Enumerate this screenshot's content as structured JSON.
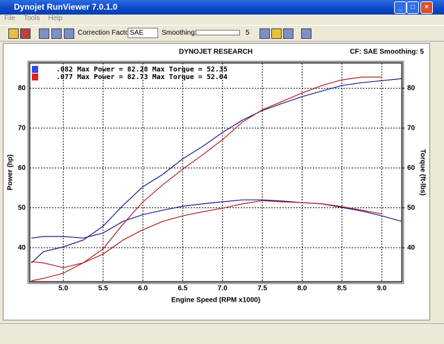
{
  "window": {
    "title": "Dynojet RunViewer 7.0.1.0",
    "menu": [
      "File",
      "Tools",
      "Help"
    ]
  },
  "toolbar": {
    "correction_label": "Correction Factor:",
    "correction_value": "SAE",
    "smoothing_label": "Smoothing:",
    "smoothing_value": "5"
  },
  "chart_data": {
    "type": "line",
    "title": "DYNOJET RESEARCH",
    "subtitle": "CF: SAE  Smoothing: 5",
    "x_label": "Engine Speed (RPM x1000)",
    "y_label": "Power (hp)",
    "y2_label": "Torque (ft-lbs)",
    "xlim": [
      4.58,
      9.25
    ],
    "ylim": [
      31.5,
      86.3
    ],
    "y2lim": [
      31.5,
      86.3
    ],
    "grid": true,
    "xticks": [
      {
        "value": 5,
        "label": "5.0"
      },
      5.5,
      {
        "value": 6,
        "label": "6.0"
      },
      6.5,
      {
        "value": 7,
        "label": "7.0"
      },
      7.5,
      {
        "value": 8,
        "label": "8.0"
      },
      8.5,
      {
        "value": 9,
        "label": "9.0"
      }
    ],
    "yticks": [
      40,
      50,
      60,
      70,
      80
    ],
    "y2ticks": [
      40,
      50,
      60,
      70,
      80
    ],
    "x": [
      4.6,
      4.75,
      5.0,
      5.25,
      5.5,
      5.75,
      6.0,
      6.25,
      6.5,
      6.75,
      7.0,
      7.25,
      7.5,
      7.75,
      8.0,
      8.25,
      8.5,
      8.75,
      9.0,
      9.25
    ],
    "series": [
      {
        "name": ".082 Max Power = 82.28 Max Torque = 52.35",
        "color": "#1a1a8c",
        "power": [
          36.2,
          39.0,
          40.2,
          41.9,
          45.4,
          50.6,
          55.3,
          58.4,
          62.3,
          65.4,
          68.9,
          72.0,
          74.4,
          76.2,
          77.9,
          79.3,
          80.7,
          81.4,
          81.9,
          82.4
        ],
        "torque": [
          42.4,
          42.8,
          42.8,
          42.4,
          43.7,
          46.6,
          48.3,
          49.4,
          50.4,
          51.0,
          51.5,
          52.0,
          52.0,
          51.7,
          51.3,
          51.0,
          50.1,
          49.2,
          48.0,
          46.6
        ]
      },
      {
        "name": ".077 Max Power = 82.73 Max Torque = 52.04",
        "color": "#b02020",
        "power": [
          31.7,
          32.3,
          33.6,
          36.2,
          39.7,
          45.9,
          51.5,
          55.8,
          59.7,
          63.3,
          67.1,
          71.5,
          74.6,
          76.7,
          78.8,
          80.7,
          82.1,
          82.8,
          82.8,
          null
        ],
        "torque": [
          36.5,
          36.2,
          35.0,
          36.2,
          38.4,
          41.9,
          44.5,
          46.6,
          48.0,
          49.0,
          49.9,
          51.0,
          51.8,
          51.5,
          51.3,
          51.0,
          50.3,
          49.4,
          48.5,
          null
        ]
      }
    ]
  }
}
